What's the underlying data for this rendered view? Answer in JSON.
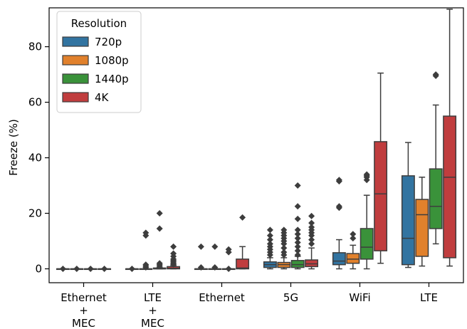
{
  "chart_data": {
    "type": "box",
    "ylabel": "Freeze (%)",
    "ylim": [
      -5,
      94
    ],
    "yticks": [
      0,
      20,
      40,
      60,
      80
    ],
    "grid": false,
    "legend": {
      "title": "Resolution",
      "placement": "top-left"
    },
    "categories": [
      [
        "Ethernet",
        "+",
        "MEC"
      ],
      [
        "LTE",
        "+",
        "MEC"
      ],
      [
        "Ethernet"
      ],
      [
        "5G"
      ],
      [
        "WiFi"
      ],
      [
        "LTE"
      ]
    ],
    "series": [
      {
        "name": "720p",
        "color": "#3274a1"
      },
      {
        "name": "1080p",
        "color": "#e1812c"
      },
      {
        "name": "1440p",
        "color": "#3a923a"
      },
      {
        "name": "4K",
        "color": "#c03d3e"
      }
    ],
    "boxes": [
      [
        {
          "whislo": 0,
          "q1": 0,
          "med": 0,
          "q3": 0,
          "whishi": 0,
          "fliers": [
            0
          ]
        },
        {
          "whislo": 0,
          "q1": 0,
          "med": 0,
          "q3": 0,
          "whishi": 0,
          "fliers": [
            0
          ]
        },
        {
          "whislo": 0,
          "q1": 0,
          "med": 0,
          "q3": 0,
          "whishi": 0,
          "fliers": [
            0
          ]
        },
        {
          "whislo": 0,
          "q1": 0,
          "med": 0,
          "q3": 0,
          "whishi": 0,
          "fliers": [
            0
          ]
        }
      ],
      [
        {
          "whislo": 0,
          "q1": 0,
          "med": 0,
          "q3": 0,
          "whishi": 0,
          "fliers": [
            0
          ]
        },
        {
          "whislo": 0,
          "q1": 0,
          "med": 0,
          "q3": 0,
          "whishi": 0,
          "fliers": [
            0.5,
            1,
            1.5,
            12,
            13
          ]
        },
        {
          "whislo": 0,
          "q1": 0,
          "med": 0,
          "q3": 0.3,
          "whishi": 0.5,
          "fliers": [
            1,
            1.5,
            2,
            14.5,
            20
          ]
        },
        {
          "whislo": 0,
          "q1": 0,
          "med": 0.2,
          "q3": 0.8,
          "whishi": 1.2,
          "fliers": [
            1.6,
            2,
            2.5,
            3,
            3.5,
            4.5,
            5.5,
            8
          ]
        }
      ],
      [
        {
          "whislo": 0,
          "q1": 0,
          "med": 0,
          "q3": 0,
          "whishi": 0,
          "fliers": [
            0.5,
            8
          ]
        },
        {
          "whislo": 0,
          "q1": 0,
          "med": 0,
          "q3": 0,
          "whishi": 0,
          "fliers": [
            0.5,
            8
          ]
        },
        {
          "whislo": 0,
          "q1": 0,
          "med": 0,
          "q3": 0,
          "whishi": 0,
          "fliers": [
            0,
            6,
            7
          ]
        },
        {
          "whislo": 0,
          "q1": 0,
          "med": 0.3,
          "q3": 3.5,
          "whishi": 8,
          "fliers": [
            18.5
          ]
        }
      ],
      [
        {
          "whislo": 0,
          "q1": 0.5,
          "med": 1.5,
          "q3": 2.5,
          "whishi": 4,
          "fliers": [
            5,
            6,
            7,
            8,
            9,
            10.5,
            12,
            14
          ]
        },
        {
          "whislo": 0,
          "q1": 0.5,
          "med": 1.5,
          "q3": 2.3,
          "whishi": 4,
          "fliers": [
            5,
            6,
            7.5,
            9,
            10,
            11,
            12,
            13,
            14
          ]
        },
        {
          "whislo": 0,
          "q1": 0.5,
          "med": 1.5,
          "q3": 3,
          "whishi": 4.5,
          "fliers": [
            5,
            6.5,
            8,
            9.5,
            11,
            12.5,
            14,
            18,
            22.5,
            30
          ]
        },
        {
          "whislo": 0,
          "q1": 0.8,
          "med": 1.8,
          "q3": 3.2,
          "whishi": 7.5,
          "fliers": [
            9,
            10.5,
            12,
            13,
            14,
            15,
            16.5,
            19
          ]
        }
      ],
      [
        {
          "whislo": 0,
          "q1": 1.5,
          "med": 2.8,
          "q3": 5.8,
          "whishi": 10.5,
          "fliers": [
            22,
            22.5,
            31.5,
            32
          ]
        },
        {
          "whislo": 0,
          "q1": 2,
          "med": 3.5,
          "q3": 5.5,
          "whishi": 8.5,
          "fliers": [
            11,
            12.5
          ]
        },
        {
          "whislo": 0,
          "q1": 3.5,
          "med": 7.8,
          "q3": 14.5,
          "whishi": 26.5,
          "fliers": [
            32,
            33,
            33.5,
            34
          ]
        },
        {
          "whislo": 2,
          "q1": 6.5,
          "med": 27,
          "q3": 45.8,
          "whishi": 70.5,
          "fliers": []
        }
      ],
      [
        {
          "whislo": 0.5,
          "q1": 1.5,
          "med": 11,
          "q3": 33.5,
          "whishi": 45.5,
          "fliers": []
        },
        {
          "whislo": 1,
          "q1": 4.5,
          "med": 19.5,
          "q3": 25,
          "whishi": 33,
          "fliers": []
        },
        {
          "whislo": 9,
          "q1": 14.5,
          "med": 22.5,
          "q3": 36,
          "whishi": 59,
          "fliers": [
            69.5,
            70
          ]
        },
        {
          "whislo": 1,
          "q1": 4,
          "med": 33,
          "q3": 55,
          "whishi": 93.5,
          "fliers": []
        }
      ]
    ]
  }
}
